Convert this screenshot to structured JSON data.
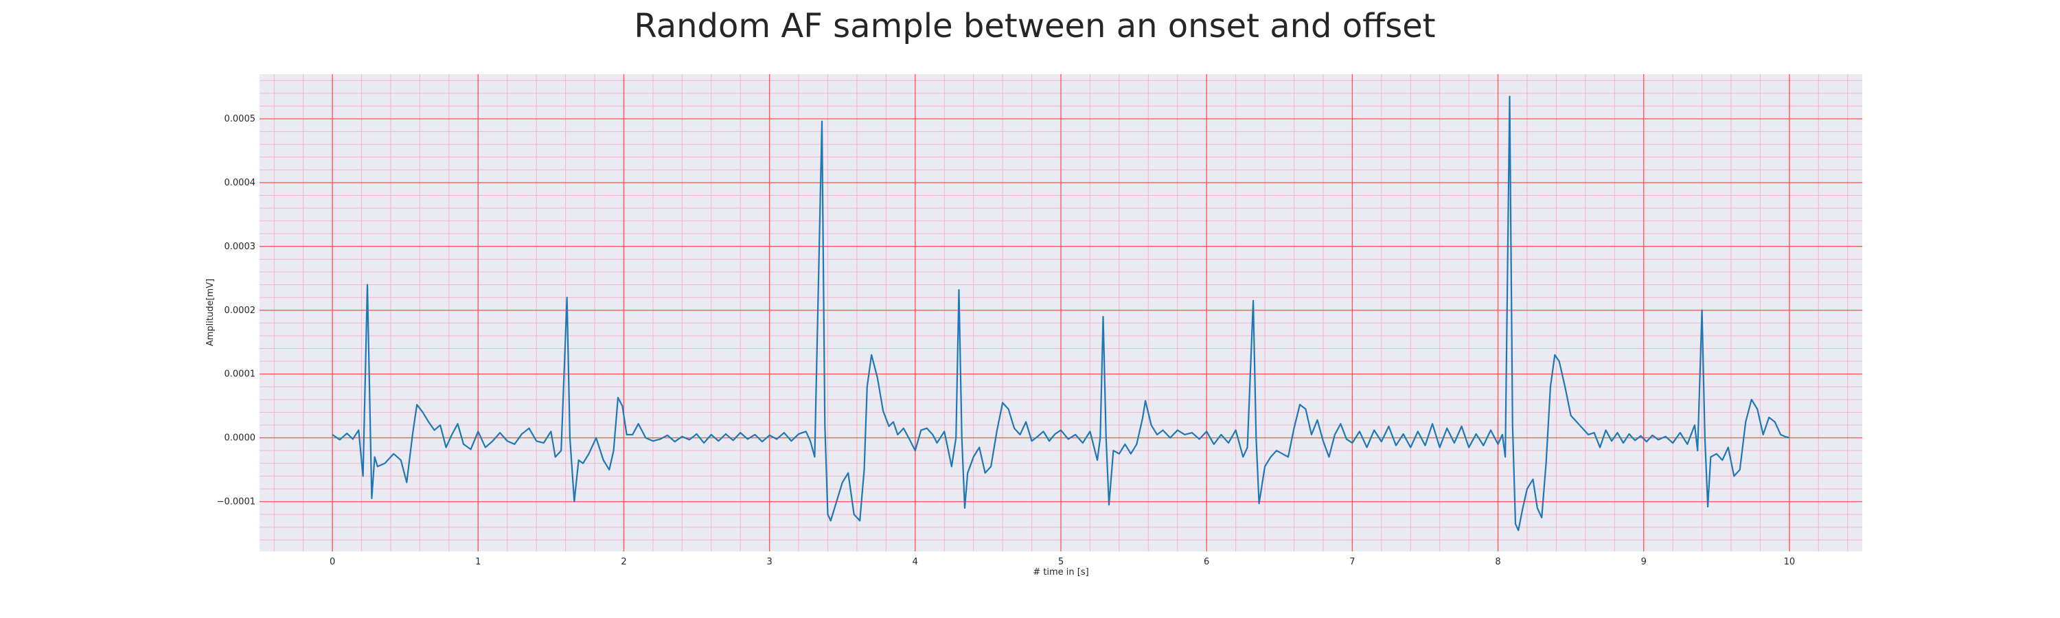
{
  "chart_data": {
    "type": "line",
    "title": "Random AF sample between an onset and offset",
    "xlabel": "# time in [s]",
    "ylabel": "Amplitude[mV]",
    "xlim": [
      -0.5,
      10.5
    ],
    "ylim": [
      -0.000178,
      0.00057
    ],
    "x_ticks": [
      0,
      1,
      2,
      3,
      4,
      5,
      6,
      7,
      8,
      9,
      10
    ],
    "x_tick_labels": [
      "0",
      "1",
      "2",
      "3",
      "4",
      "5",
      "6",
      "7",
      "8",
      "9",
      "10"
    ],
    "y_ticks": [
      -0.0001,
      0.0,
      0.0001,
      0.0002,
      0.0003,
      0.0004,
      0.0005
    ],
    "y_tick_labels": [
      "−0.0001",
      "0.0000",
      "0.0001",
      "0.0002",
      "0.0003",
      "0.0004",
      "0.0005"
    ],
    "grid": true,
    "major_grid_color": "#ff5a5a",
    "minor_grid_color": "#f4b6c8",
    "plot_background": "#eaeaf2",
    "line_color": "#1f77b4",
    "series": [
      {
        "points": [
          [
            0.0,
            5e-06
          ],
          [
            0.05,
            -3e-06
          ],
          [
            0.1,
            7e-06
          ],
          [
            0.14,
            -2e-06
          ],
          [
            0.18,
            1.2e-05
          ],
          [
            0.21,
            -6e-05
          ],
          [
            0.24,
            0.00024
          ],
          [
            0.27,
            -9.5e-05
          ],
          [
            0.29,
            -3e-05
          ],
          [
            0.31,
            -4.5e-05
          ],
          [
            0.36,
            -4e-05
          ],
          [
            0.42,
            -2.5e-05
          ],
          [
            0.47,
            -3.5e-05
          ],
          [
            0.51,
            -7e-05
          ],
          [
            0.55,
            5e-06
          ],
          [
            0.58,
            5.2e-05
          ],
          [
            0.62,
            4e-05
          ],
          [
            0.66,
            2.5e-05
          ],
          [
            0.7,
            1.2e-05
          ],
          [
            0.74,
            2e-05
          ],
          [
            0.78,
            -1.5e-05
          ],
          [
            0.82,
            5e-06
          ],
          [
            0.86,
            2.2e-05
          ],
          [
            0.9,
            -1e-05
          ],
          [
            0.95,
            -1.8e-05
          ],
          [
            1.0,
            1e-05
          ],
          [
            1.05,
            -1.5e-05
          ],
          [
            1.1,
            -5e-06
          ],
          [
            1.15,
            8e-06
          ],
          [
            1.2,
            -5e-06
          ],
          [
            1.25,
            -1e-05
          ],
          [
            1.3,
            6e-06
          ],
          [
            1.35,
            1.5e-05
          ],
          [
            1.4,
            -5e-06
          ],
          [
            1.45,
            -8e-06
          ],
          [
            1.5,
            1e-05
          ],
          [
            1.53,
            -3e-05
          ],
          [
            1.57,
            -2e-05
          ],
          [
            1.61,
            0.00022
          ],
          [
            1.63,
            0.0
          ],
          [
            1.66,
            -0.0001
          ],
          [
            1.69,
            -3.5e-05
          ],
          [
            1.72,
            -4e-05
          ],
          [
            1.76,
            -2.5e-05
          ],
          [
            1.81,
            0.0
          ],
          [
            1.86,
            -3.5e-05
          ],
          [
            1.9,
            -5e-05
          ],
          [
            1.93,
            -2e-05
          ],
          [
            1.96,
            6.3e-05
          ],
          [
            1.99,
            5e-05
          ],
          [
            2.02,
            5e-06
          ],
          [
            2.06,
            5e-06
          ],
          [
            2.1,
            2.2e-05
          ],
          [
            2.15,
            0.0
          ],
          [
            2.2,
            -5e-06
          ],
          [
            2.25,
            -2e-06
          ],
          [
            2.3,
            4e-06
          ],
          [
            2.35,
            -6e-06
          ],
          [
            2.4,
            2e-06
          ],
          [
            2.45,
            -3e-06
          ],
          [
            2.5,
            6e-06
          ],
          [
            2.55,
            -8e-06
          ],
          [
            2.6,
            5e-06
          ],
          [
            2.65,
            -5e-06
          ],
          [
            2.7,
            6e-06
          ],
          [
            2.75,
            -4e-06
          ],
          [
            2.8,
            8e-06
          ],
          [
            2.85,
            -2e-06
          ],
          [
            2.9,
            5e-06
          ],
          [
            2.95,
            -6e-06
          ],
          [
            3.0,
            4e-06
          ],
          [
            3.05,
            -2e-06
          ],
          [
            3.1,
            8e-06
          ],
          [
            3.15,
            -5e-06
          ],
          [
            3.2,
            6e-06
          ],
          [
            3.25,
            1e-05
          ],
          [
            3.28,
            -5e-06
          ],
          [
            3.31,
            -3e-05
          ],
          [
            3.36,
            0.000496
          ],
          [
            3.38,
            2e-05
          ],
          [
            3.4,
            -0.00012
          ],
          [
            3.42,
            -0.00013
          ],
          [
            3.46,
            -0.0001
          ],
          [
            3.5,
            -7e-05
          ],
          [
            3.54,
            -5.5e-05
          ],
          [
            3.58,
            -0.00012
          ],
          [
            3.62,
            -0.00013
          ],
          [
            3.65,
            -5e-05
          ],
          [
            3.67,
            8e-05
          ],
          [
            3.7,
            0.00013
          ],
          [
            3.74,
            9.5e-05
          ],
          [
            3.78,
            4.2e-05
          ],
          [
            3.82,
            1.8e-05
          ],
          [
            3.85,
            2.5e-05
          ],
          [
            3.88,
            5e-06
          ],
          [
            3.92,
            1.5e-05
          ],
          [
            3.96,
            -2e-06
          ],
          [
            4.0,
            -2e-05
          ],
          [
            4.04,
            1.2e-05
          ],
          [
            4.08,
            1.5e-05
          ],
          [
            4.12,
            5e-06
          ],
          [
            4.15,
            -8e-06
          ],
          [
            4.2,
            1e-05
          ],
          [
            4.25,
            -4.5e-05
          ],
          [
            4.28,
            0.0
          ],
          [
            4.3,
            0.000232
          ],
          [
            4.32,
            0.0
          ],
          [
            4.34,
            -0.00011
          ],
          [
            4.36,
            -5.5e-05
          ],
          [
            4.4,
            -3e-05
          ],
          [
            4.44,
            -1.5e-05
          ],
          [
            4.48,
            -5.5e-05
          ],
          [
            4.52,
            -4.5e-05
          ],
          [
            4.56,
            1e-05
          ],
          [
            4.6,
            5.5e-05
          ],
          [
            4.64,
            4.5e-05
          ],
          [
            4.68,
            1.5e-05
          ],
          [
            4.72,
            5e-06
          ],
          [
            4.76,
            2.5e-05
          ],
          [
            4.8,
            -5e-06
          ],
          [
            4.84,
            2e-06
          ],
          [
            4.88,
            1e-05
          ],
          [
            4.92,
            -5e-06
          ],
          [
            4.96,
            6e-06
          ],
          [
            5.0,
            1.2e-05
          ],
          [
            5.05,
            -2e-06
          ],
          [
            5.1,
            5e-06
          ],
          [
            5.15,
            -8e-06
          ],
          [
            5.2,
            1e-05
          ],
          [
            5.25,
            -3.5e-05
          ],
          [
            5.27,
            0.0
          ],
          [
            5.29,
            0.00019
          ],
          [
            5.31,
            0.0
          ],
          [
            5.33,
            -0.000105
          ],
          [
            5.36,
            -2e-05
          ],
          [
            5.4,
            -2.5e-05
          ],
          [
            5.44,
            -1e-05
          ],
          [
            5.48,
            -2.5e-05
          ],
          [
            5.52,
            -1e-05
          ],
          [
            5.56,
            3e-05
          ],
          [
            5.58,
            5.8e-05
          ],
          [
            5.62,
            2e-05
          ],
          [
            5.66,
            5e-06
          ],
          [
            5.7,
            1.2e-05
          ],
          [
            5.75,
            0.0
          ],
          [
            5.8,
            1.2e-05
          ],
          [
            5.85,
            5e-06
          ],
          [
            5.9,
            8e-06
          ],
          [
            5.95,
            -2e-06
          ],
          [
            6.0,
            1e-05
          ],
          [
            6.05,
            -1e-05
          ],
          [
            6.1,
            5e-06
          ],
          [
            6.15,
            -8e-06
          ],
          [
            6.2,
            1.2e-05
          ],
          [
            6.25,
            -3e-05
          ],
          [
            6.28,
            -1.5e-05
          ],
          [
            6.32,
            0.000215
          ],
          [
            6.34,
            0.0
          ],
          [
            6.36,
            -0.000103
          ],
          [
            6.4,
            -4.5e-05
          ],
          [
            6.44,
            -3e-05
          ],
          [
            6.48,
            -2e-05
          ],
          [
            6.52,
            -2.5e-05
          ],
          [
            6.56,
            -3e-05
          ],
          [
            6.6,
            1.5e-05
          ],
          [
            6.64,
            5.2e-05
          ],
          [
            6.68,
            4.5e-05
          ],
          [
            6.72,
            5e-06
          ],
          [
            6.76,
            2.8e-05
          ],
          [
            6.8,
            -5e-06
          ],
          [
            6.84,
            -3e-05
          ],
          [
            6.88,
            5e-06
          ],
          [
            6.92,
            2.2e-05
          ],
          [
            6.96,
            -2e-06
          ],
          [
            7.0,
            -8e-06
          ],
          [
            7.05,
            1e-05
          ],
          [
            7.1,
            -1.5e-05
          ],
          [
            7.15,
            1.2e-05
          ],
          [
            7.2,
            -6e-06
          ],
          [
            7.25,
            1.8e-05
          ],
          [
            7.3,
            -1.2e-05
          ],
          [
            7.35,
            6e-06
          ],
          [
            7.4,
            -1.5e-05
          ],
          [
            7.45,
            1e-05
          ],
          [
            7.5,
            -1.2e-05
          ],
          [
            7.55,
            2.2e-05
          ],
          [
            7.6,
            -1.5e-05
          ],
          [
            7.65,
            1.5e-05
          ],
          [
            7.7,
            -8e-06
          ],
          [
            7.75,
            1.8e-05
          ],
          [
            7.8,
            -1.5e-05
          ],
          [
            7.85,
            6e-06
          ],
          [
            7.9,
            -1.2e-05
          ],
          [
            7.95,
            1.2e-05
          ],
          [
            8.0,
            -1e-05
          ],
          [
            8.03,
            5e-06
          ],
          [
            8.05,
            -3e-05
          ],
          [
            8.08,
            0.000535
          ],
          [
            8.1,
            2e-05
          ],
          [
            8.12,
            -0.000135
          ],
          [
            8.14,
            -0.000145
          ],
          [
            8.17,
            -0.00011
          ],
          [
            8.2,
            -8e-05
          ],
          [
            8.24,
            -6.5e-05
          ],
          [
            8.27,
            -0.00011
          ],
          [
            8.3,
            -0.000125
          ],
          [
            8.33,
            -4e-05
          ],
          [
            8.36,
            8e-05
          ],
          [
            8.39,
            0.00013
          ],
          [
            8.42,
            0.00012
          ],
          [
            8.46,
            8e-05
          ],
          [
            8.5,
            3.5e-05
          ],
          [
            8.54,
            2.5e-05
          ],
          [
            8.58,
            1.5e-05
          ],
          [
            8.62,
            5e-06
          ],
          [
            8.66,
            8e-06
          ],
          [
            8.7,
            -1.5e-05
          ],
          [
            8.74,
            1.2e-05
          ],
          [
            8.78,
            -5e-06
          ],
          [
            8.82,
            8e-06
          ],
          [
            8.86,
            -8e-06
          ],
          [
            8.9,
            6e-06
          ],
          [
            8.94,
            -4e-06
          ],
          [
            8.98,
            3e-06
          ],
          [
            9.02,
            -6e-06
          ],
          [
            9.06,
            4e-06
          ],
          [
            9.1,
            -3e-06
          ],
          [
            9.15,
            2e-06
          ],
          [
            9.2,
            -8e-06
          ],
          [
            9.25,
            8e-06
          ],
          [
            9.3,
            -1e-05
          ],
          [
            9.35,
            2e-05
          ],
          [
            9.37,
            -2e-05
          ],
          [
            9.4,
            0.0002
          ],
          [
            9.42,
            0.0
          ],
          [
            9.44,
            -0.000108
          ],
          [
            9.46,
            -3e-05
          ],
          [
            9.5,
            -2.5e-05
          ],
          [
            9.54,
            -3.5e-05
          ],
          [
            9.58,
            -1.5e-05
          ],
          [
            9.62,
            -6e-05
          ],
          [
            9.66,
            -5e-05
          ],
          [
            9.7,
            2.5e-05
          ],
          [
            9.74,
            6e-05
          ],
          [
            9.78,
            4.5e-05
          ],
          [
            9.82,
            5e-06
          ],
          [
            9.86,
            3.2e-05
          ],
          [
            9.9,
            2.5e-05
          ],
          [
            9.94,
            5e-06
          ],
          [
            9.97,
            2e-06
          ],
          [
            10.0,
            0.0
          ]
        ]
      }
    ]
  }
}
